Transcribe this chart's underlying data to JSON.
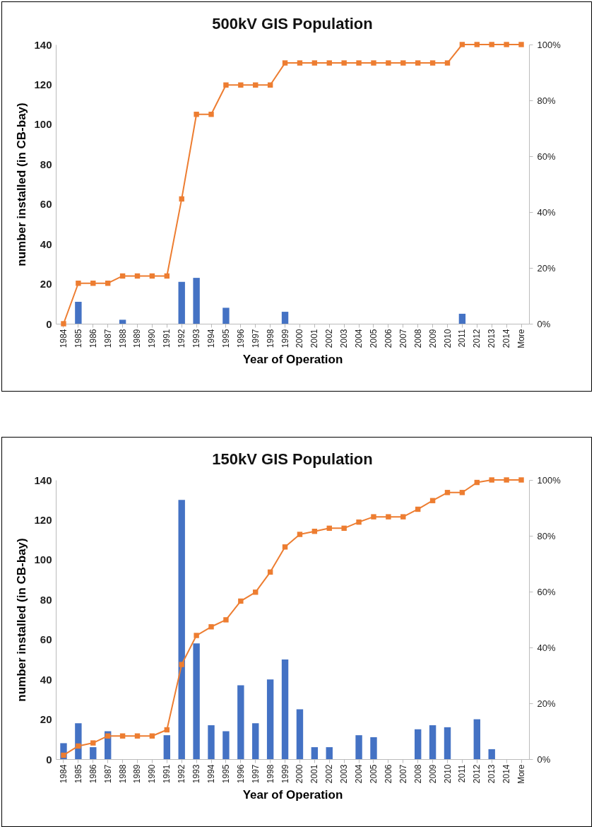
{
  "chart_data": [
    {
      "type": "bar",
      "title": "500kV GIS Population",
      "xlabel": "Year of Operation",
      "ylabel": "number installed (in CB-bay)",
      "categories": [
        "1984",
        "1985",
        "1986",
        "1987",
        "1988",
        "1989",
        "1990",
        "1991",
        "1992",
        "1993",
        "1994",
        "1995",
        "1996",
        "1997",
        "1998",
        "1999",
        "2000",
        "2001",
        "2002",
        "2003",
        "2004",
        "2005",
        "2006",
        "2007",
        "2008",
        "2009",
        "2010",
        "2011",
        "2012",
        "2013",
        "2014",
        "More"
      ],
      "marker": "square",
      "ylim": [
        0,
        140
      ],
      "yticks": [
        0,
        20,
        40,
        60,
        80,
        100,
        120,
        140
      ],
      "y2lim": [
        0,
        100
      ],
      "y2ticks": [
        {
          "value": 0,
          "label": "0%"
        },
        {
          "value": 20,
          "label": "20%"
        },
        {
          "value": 40,
          "label": "40%"
        },
        {
          "value": 60,
          "label": "60%"
        },
        {
          "value": 80,
          "label": "80%"
        },
        {
          "value": 100,
          "label": "100%"
        }
      ],
      "series": [
        {
          "color": "#4472c4",
          "values": [
            0,
            11,
            0,
            0,
            2,
            0,
            0,
            0,
            21,
            23,
            0,
            8,
            0,
            0,
            0,
            6,
            0,
            0,
            0,
            0,
            0,
            0,
            0,
            0,
            0,
            0,
            0,
            5,
            0,
            0,
            0,
            0
          ]
        },
        {
          "type": "line",
          "axis": "y2",
          "color": "#ed7d31",
          "values": [
            0,
            14.5,
            14.5,
            14.5,
            17.1,
            17.1,
            17.1,
            17.1,
            44.7,
            75,
            75,
            85.5,
            85.5,
            85.5,
            85.5,
            93.4,
            93.4,
            93.4,
            93.4,
            93.4,
            93.4,
            93.4,
            93.4,
            93.4,
            93.4,
            93.4,
            93.4,
            100,
            100,
            100,
            100,
            100
          ]
        }
      ]
    },
    {
      "type": "bar",
      "title": "150kV GIS Population",
      "xlabel": "Year of Operation",
      "ylabel": "number installed (in CB-bay)",
      "categories": [
        "1984",
        "1985",
        "1986",
        "1987",
        "1988",
        "1989",
        "1990",
        "1991",
        "1992",
        "1993",
        "1994",
        "1995",
        "1996",
        "1997",
        "1998",
        "1999",
        "2000",
        "2001",
        "2002",
        "2003",
        "2004",
        "2005",
        "2006",
        "2007",
        "2008",
        "2009",
        "2010",
        "2011",
        "2012",
        "2013",
        "2014",
        "More"
      ],
      "marker": "square",
      "ylim": [
        0,
        140
      ],
      "yticks": [
        0,
        20,
        40,
        60,
        80,
        100,
        120,
        140
      ],
      "y2lim": [
        0,
        100
      ],
      "y2ticks": [
        {
          "value": 0,
          "label": "0%"
        },
        {
          "value": 20,
          "label": "20%"
        },
        {
          "value": 40,
          "label": "40%"
        },
        {
          "value": 60,
          "label": "60%"
        },
        {
          "value": 80,
          "label": "80%"
        },
        {
          "value": 100,
          "label": "100%"
        }
      ],
      "series": [
        {
          "color": "#4472c4",
          "values": [
            8,
            18,
            6,
            14,
            0,
            0,
            0,
            12,
            130,
            58,
            17,
            14,
            37,
            18,
            40,
            50,
            25,
            6,
            6,
            0,
            12,
            11,
            0,
            0,
            15,
            17,
            16,
            0,
            20,
            5,
            0,
            0
          ]
        },
        {
          "type": "line",
          "axis": "y2",
          "color": "#ed7d31",
          "values": [
            1.4,
            4.7,
            5.8,
            8.3,
            8.3,
            8.3,
            8.3,
            10.5,
            33.9,
            44.3,
            47.4,
            49.9,
            56.6,
            59.8,
            67,
            76,
            80.5,
            81.6,
            82.7,
            82.7,
            84.9,
            86.8,
            86.8,
            86.8,
            89.5,
            92.6,
            95.5,
            95.5,
            99.1,
            100,
            100,
            100
          ]
        }
      ]
    }
  ]
}
